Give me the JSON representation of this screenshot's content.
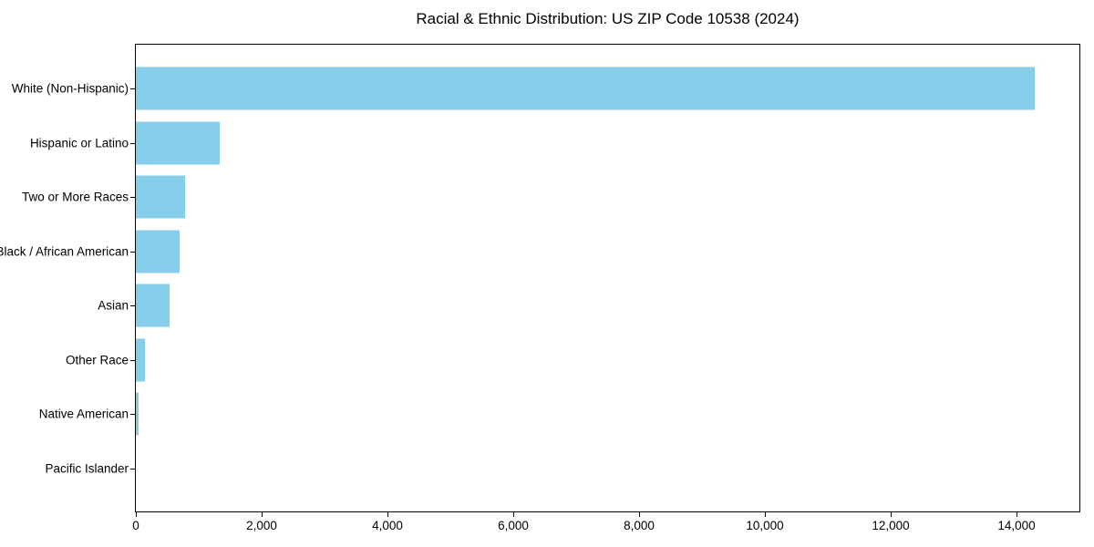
{
  "title": "Racial & Ethnic Distribution: US ZIP Code 10538 (2024)",
  "colors": {
    "bar": "#87CEEB",
    "axis": "#000000",
    "background": "#ffffff",
    "text": "#000000"
  },
  "chart_data": {
    "type": "bar",
    "orientation": "horizontal",
    "title": "Racial & Ethnic Distribution: US ZIP Code 10538 (2024)",
    "categories": [
      "White (Non-Hispanic)",
      "Hispanic or Latino",
      "Two or More Races",
      "Black / African American",
      "Asian",
      "Other Race",
      "Native American",
      "Pacific Islander"
    ],
    "values": [
      14290,
      1340,
      780,
      690,
      530,
      150,
      40,
      0
    ],
    "bar_color": "#87CEEB",
    "xlabel": "",
    "ylabel": "",
    "xlim": [
      0,
      15000
    ],
    "xticks": [
      0,
      2000,
      4000,
      6000,
      8000,
      10000,
      12000,
      14000
    ],
    "xtick_labels": [
      "0",
      "2,000",
      "4,000",
      "6,000",
      "8,000",
      "10,000",
      "12,000",
      "14,000"
    ],
    "grid": false,
    "legend": null
  }
}
